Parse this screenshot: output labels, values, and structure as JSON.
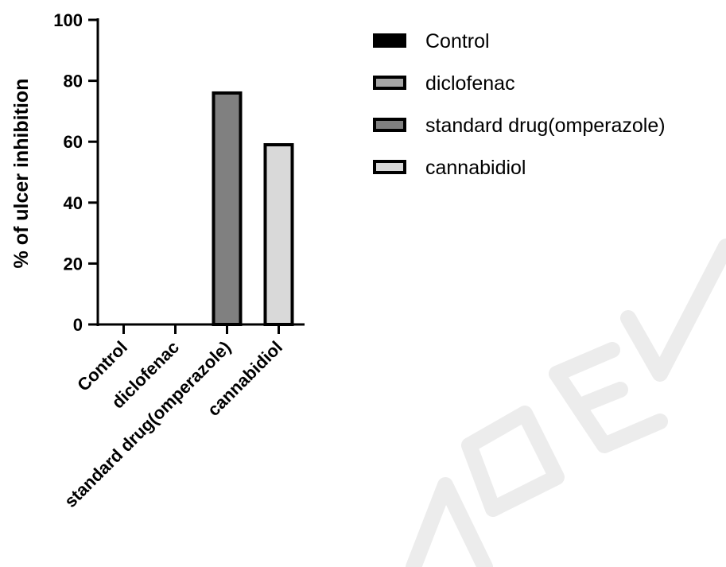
{
  "chart_data": {
    "type": "bar",
    "title": "",
    "xlabel": "",
    "ylabel": "% of ulcer inhibition",
    "ylim": [
      0,
      100
    ],
    "yticks": [
      0,
      20,
      40,
      60,
      80,
      100
    ],
    "categories": [
      "Control",
      "diclofenac",
      "standard drug(omperazole)",
      "cannabidiol"
    ],
    "values": [
      0,
      0,
      76,
      59
    ],
    "colors": [
      "#000000",
      "#a6a6a6",
      "#808080",
      "#d9d9d9"
    ],
    "grid": false,
    "legend_position": "right",
    "legend": [
      "Control",
      "diclofenac",
      "standard drug(omperazole)",
      "cannabidiol"
    ]
  }
}
